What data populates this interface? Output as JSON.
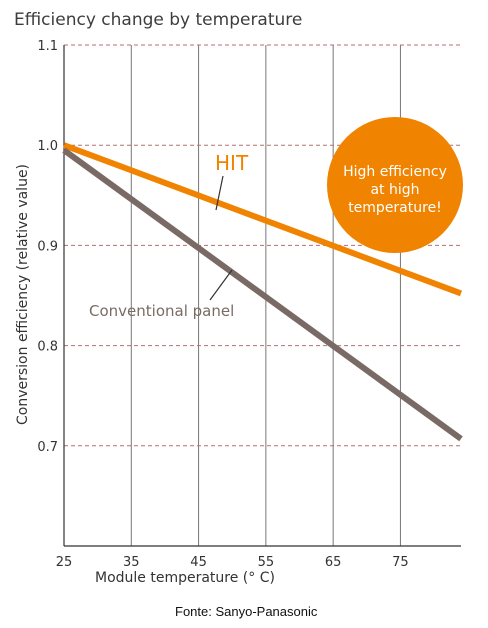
{
  "chart_data": {
    "type": "line",
    "title": "Efficiency change by temperature",
    "xlabel": "Module temperature (° C)",
    "ylabel": "Conversion efficiency (relative value)",
    "xlim": [
      25,
      84
    ],
    "ylim": [
      0.6,
      1.1
    ],
    "x_ticks": [
      "25",
      "35",
      "45",
      "55",
      "65",
      "75"
    ],
    "y_ticks": [
      "1.1",
      "1.0",
      "0.9",
      "0.8",
      "0.7"
    ],
    "grid": true,
    "series": [
      {
        "name": "HIT",
        "color": "#f08300",
        "x": [
          25,
          84
        ],
        "y": [
          1.0,
          0.852
        ]
      },
      {
        "name": "Conventional panel",
        "color": "#7a6a66",
        "x": [
          25,
          84
        ],
        "y": [
          0.995,
          0.707
        ]
      }
    ],
    "annotations": {
      "hit_label": "HIT",
      "conventional_label": "Conventional panel",
      "bubble_lines": [
        "High efficiency",
        "at high",
        "temperature!"
      ]
    }
  },
  "source": "Fonte: Sanyo-Panasonic",
  "colors": {
    "accent": "#f08300",
    "conventional": "#7a6a66",
    "grid": "#b07070"
  }
}
